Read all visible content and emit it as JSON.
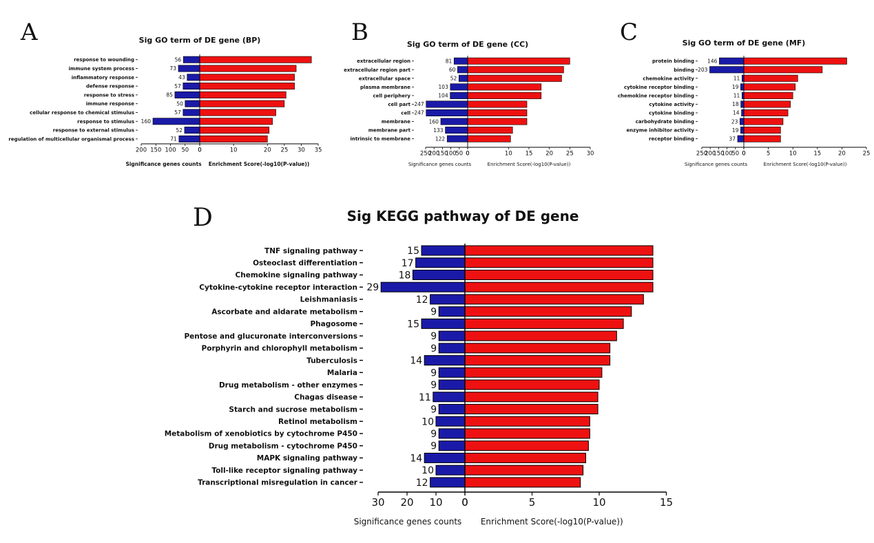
{
  "chart_data": [
    {
      "panel": "A",
      "type": "bar",
      "title": "Sig GO term of DE gene (BP)",
      "categories": [
        "response to wounding",
        "immune system process",
        "inflammatory response",
        "defense response",
        "response to stress",
        "immune response",
        "cellular response to chemical stimulus",
        "response to stimulus",
        "response to external stimulus",
        "regulation of multicellular organismal process"
      ],
      "series": [
        {
          "name": "Significance genes counts",
          "values": [
            56,
            73,
            43,
            57,
            85,
            50,
            57,
            160,
            52,
            71
          ]
        },
        {
          "name": "Enrichment Score(-log10(P-value))",
          "values": [
            33,
            28.5,
            28,
            28,
            25.5,
            25,
            22.5,
            21.5,
            20.5,
            20
          ]
        }
      ],
      "xlabel_left": "Significance genes counts",
      "xlabel_right": "Enrichment Score(-log10(P-value))",
      "left_ticks": [
        "200",
        "150",
        "100",
        "50",
        "0"
      ],
      "right_ticks": [
        "0",
        "10",
        "20",
        "25",
        "30",
        "35"
      ],
      "left_xlim": [
        0,
        200
      ],
      "right_xlim": [
        0,
        35
      ],
      "colors": {
        "count": "#1a1aa8",
        "score": "#ee1111"
      }
    },
    {
      "panel": "B",
      "type": "bar",
      "title": "Sig GO term of DE gene (CC)",
      "categories": [
        "extracellular region",
        "extracellular region part",
        "extracellular space",
        "plasma membrane",
        "cell periphery",
        "cell part",
        "cell",
        "membrane",
        "membrane part",
        "intrinsic to membrane"
      ],
      "series": [
        {
          "name": "Significance genes counts",
          "values": [
            81,
            60,
            52,
            103,
            104,
            247,
            247,
            160,
            133,
            122
          ]
        },
        {
          "name": "Enrichment Score(-log10(P-value))",
          "values": [
            25,
            23.5,
            23,
            18,
            18,
            14.5,
            14.5,
            14.5,
            11,
            10.5
          ]
        }
      ],
      "xlabel_left": "Significance genes counts",
      "xlabel_right": "Enrichment Score(-log10(P-value))",
      "left_ticks": [
        "250",
        "200",
        "150",
        "100",
        "50",
        "0"
      ],
      "right_ticks": [
        "0",
        "10",
        "15",
        "20",
        "25",
        "30"
      ],
      "left_xlim": [
        0,
        250
      ],
      "right_xlim": [
        0,
        30
      ],
      "colors": {
        "count": "#1a1aa8",
        "score": "#ee1111"
      }
    },
    {
      "panel": "C",
      "type": "bar",
      "title": "Sig GO term of DE gene (MF)",
      "categories": [
        "protein binding",
        "binding",
        "chemokine activity",
        "cytokine receptor binding",
        "chemokine receptor binding",
        "cytokine activity",
        "cytokine binding",
        "carbohydrate binding",
        "enzyme inhibitor activity",
        "receptor binding"
      ],
      "series": [
        {
          "name": "Significance genes counts",
          "values": [
            146,
            203,
            11,
            19,
            11,
            18,
            14,
            23,
            19,
            37
          ]
        },
        {
          "name": "Enrichment Score(-log10(P-value))",
          "values": [
            21,
            16,
            11,
            10.5,
            10,
            9.5,
            9,
            8,
            7.5,
            7.5
          ]
        }
      ],
      "xlabel_left": "Significance genes counts",
      "xlabel_right": "Enrichment Score(-log10(P-value))",
      "left_ticks": [
        "250",
        "200",
        "150",
        "100",
        "50",
        "0"
      ],
      "right_ticks": [
        "0",
        "5",
        "10",
        "15",
        "20",
        "25"
      ],
      "left_xlim": [
        0,
        250
      ],
      "right_xlim": [
        0,
        25
      ],
      "colors": {
        "count": "#1a1aa8",
        "score": "#ee1111"
      }
    },
    {
      "panel": "D",
      "type": "bar",
      "title": "Sig KEGG pathway of DE gene",
      "categories": [
        "TNF signaling pathway",
        "Osteoclast differentiation",
        "Chemokine signaling pathway",
        "Cytokine-cytokine receptor interaction",
        "Leishmaniasis",
        "Ascorbate and aldarate metabolism",
        "Phagosome",
        "Pentose and glucuronate interconversions",
        "Porphyrin and chlorophyll metabolism",
        "Tuberculosis",
        "Malaria",
        "Drug metabolism - other enzymes",
        "Chagas disease",
        "Starch and sucrose metabolism",
        "Retinol metabolism",
        "Metabolism of xenobiotics by cytochrome P450",
        "Drug metabolism - cytochrome P450",
        "MAPK signaling pathway",
        "Toll-like receptor signaling pathway",
        "Transcriptional misregulation in cancer"
      ],
      "series": [
        {
          "name": "Significance genes counts",
          "values": [
            15,
            17,
            18,
            29,
            12,
            9,
            15,
            9,
            9,
            14,
            9,
            9,
            11,
            9,
            10,
            9,
            9,
            14,
            10,
            12
          ]
        },
        {
          "name": "Enrichment Score(-log10(P-value))",
          "values": [
            14,
            14,
            14,
            14,
            13.3,
            12.4,
            11.8,
            11.3,
            10.8,
            10.8,
            10.2,
            10,
            9.9,
            9.9,
            9.3,
            9.3,
            9.2,
            9,
            8.8,
            8.6
          ]
        }
      ],
      "xlabel_left": "Significance genes counts",
      "xlabel_right": "Enrichment Score(-log10(P-value))",
      "left_ticks": [
        "30",
        "20",
        "10",
        "0"
      ],
      "right_ticks": [
        "0",
        "5",
        "10",
        "15"
      ],
      "left_xlim": [
        0,
        30
      ],
      "right_xlim": [
        0,
        15
      ],
      "colors": {
        "count": "#1a1aa8",
        "score": "#ee1111"
      }
    }
  ]
}
